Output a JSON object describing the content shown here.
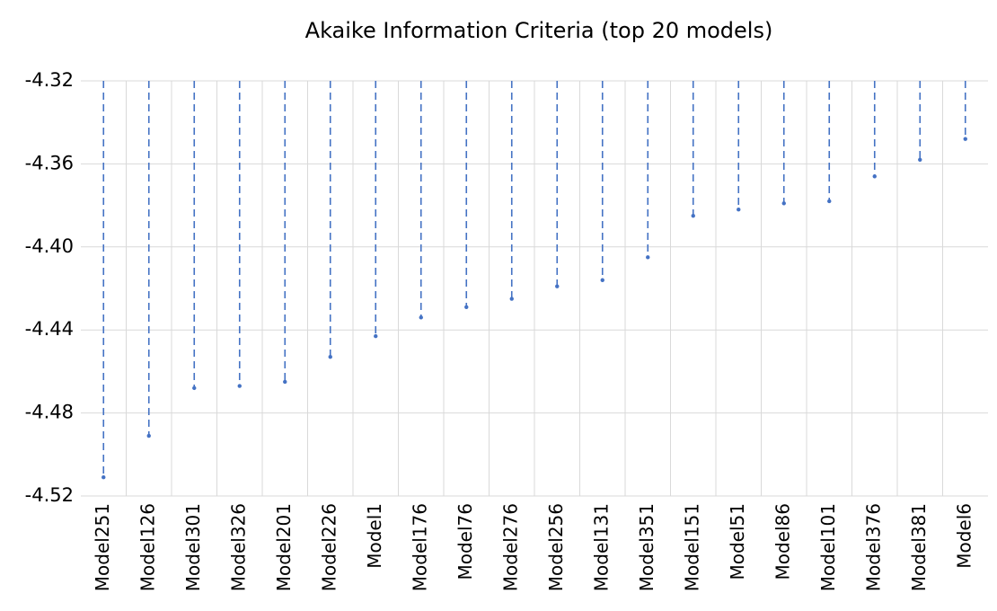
{
  "chart_data": {
    "type": "stem",
    "title": "Akaike Information Criteria (top 20 models)",
    "categories": [
      "Model251",
      "Model126",
      "Model301",
      "Model326",
      "Model201",
      "Model226",
      "Model1",
      "Model176",
      "Model76",
      "Model276",
      "Model256",
      "Model131",
      "Model351",
      "Model151",
      "Model51",
      "Model86",
      "Model101",
      "Model376",
      "Model381",
      "Model6"
    ],
    "values": [
      -4.511,
      -4.491,
      -4.468,
      -4.467,
      -4.465,
      -4.453,
      -4.443,
      -4.434,
      -4.429,
      -4.425,
      -4.419,
      -4.416,
      -4.405,
      -4.385,
      -4.382,
      -4.379,
      -4.378,
      -4.366,
      -4.358,
      -4.348
    ],
    "color": "#4472c4",
    "ylim": [
      -4.52,
      -4.32
    ],
    "yticks": [
      -4.52,
      -4.48,
      -4.44,
      {
        "value": -4.4,
        "label": "-4.40"
      },
      -4.36,
      -4.32
    ],
    "grid": true
  }
}
